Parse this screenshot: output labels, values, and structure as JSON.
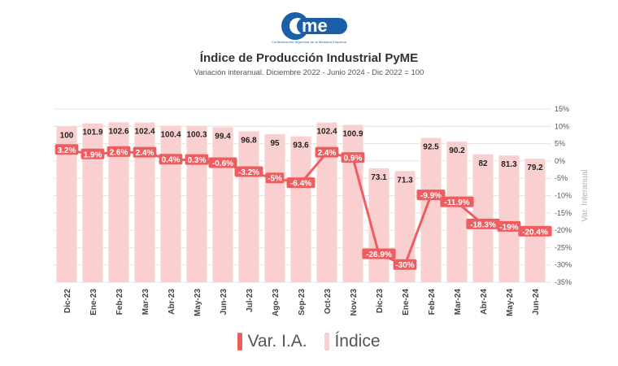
{
  "logo": {
    "text": "came",
    "caption": "Confederación Argentina de la Mediana Empresa",
    "color": "#1a5fa8"
  },
  "chart_data": {
    "type": "bar+line",
    "title": "Índice de Producción Industrial PyME",
    "subtitle": "Variación interanual. Diciembre 2022 - Junio 2024 - Dic 2022 = 100",
    "categories": [
      "Dic-22",
      "Ene-23",
      "Feb-23",
      "Mar-23",
      "Abr-23",
      "May-23",
      "Jun-23",
      "Jul-23",
      "Ago-23",
      "Sep-23",
      "Oct-23",
      "Nov-23",
      "Dic-23",
      "Ene-24",
      "Feb-24",
      "Mar-24",
      "Abr-24",
      "May-24",
      "Jun-24"
    ],
    "series": [
      {
        "name": "Índice",
        "type": "bar",
        "axis": "left",
        "values": [
          100,
          101.9,
          102.6,
          102.4,
          100.4,
          100.3,
          99.4,
          96.8,
          95,
          93.6,
          102.4,
          100.9,
          73.1,
          71.3,
          92.5,
          90.2,
          82,
          81.3,
          79.2
        ],
        "labels": [
          "100",
          "101.9",
          "102.6",
          "102.4",
          "100.4",
          "100.3",
          "99.4",
          "96.8",
          "95",
          "93.6",
          "102.4",
          "100.9",
          "73.1",
          "71.3",
          "92.5",
          "90.2",
          "82",
          "81.3",
          "79.2"
        ],
        "color": "#f9cfcf"
      },
      {
        "name": "Var. I.A.",
        "type": "line",
        "axis": "right",
        "values": [
          3.2,
          1.9,
          2.6,
          2.4,
          0.4,
          0.3,
          -0.6,
          -3.2,
          -5,
          -6.4,
          2.4,
          0.9,
          -26.9,
          -30,
          -9.9,
          -11.9,
          -18.3,
          -19,
          -20.4
        ],
        "labels": [
          "3.2%",
          "1.9%",
          "2.6%",
          "2.4%",
          "0.4%",
          "0.3%",
          "-0.6%",
          "-3.2%",
          "-5%",
          "-6.4%",
          "2.4%",
          "0.9%",
          "-26.9%",
          "-30%",
          "-9.9%",
          "-11.9%",
          "-18.3%",
          "-19%",
          "-20.4%"
        ],
        "color": "#ee5e61"
      }
    ],
    "y_right": {
      "label": "Var. Interanual",
      "range": [
        -35,
        15
      ],
      "ticks": [
        "15%",
        "10%",
        "5%",
        "0%",
        "-5%",
        "-10%",
        "-15%",
        "-20%",
        "-25%",
        "-30%",
        "-35%"
      ]
    },
    "legend": {
      "position": "bottom",
      "items": [
        "Var. I.A.",
        "Índice"
      ]
    },
    "grid": true
  }
}
